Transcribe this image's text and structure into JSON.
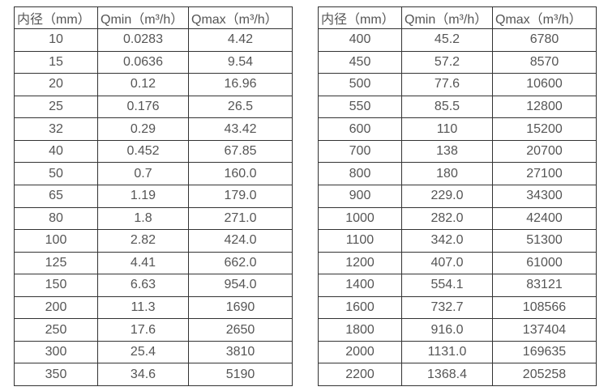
{
  "colors": {
    "border": "#333333",
    "text": "#555555",
    "background": "#ffffff"
  },
  "table_left": {
    "headers": [
      "内径（mm）",
      "Qmin（m³/h）",
      "Qmax（m³/h）"
    ],
    "rows": [
      [
        "10",
        "0.0283",
        "4.42"
      ],
      [
        "15",
        "0.0636",
        "9.54"
      ],
      [
        "20",
        "0.12",
        "16.96"
      ],
      [
        "25",
        "0.176",
        "26.5"
      ],
      [
        "32",
        "0.29",
        "43.42"
      ],
      [
        "40",
        "0.452",
        "67.85"
      ],
      [
        "50",
        "0.7",
        "160.0"
      ],
      [
        "65",
        "1.19",
        "179.0"
      ],
      [
        "80",
        "1.8",
        "271.0"
      ],
      [
        "100",
        "2.82",
        "424.0"
      ],
      [
        "125",
        "4.41",
        "662.0"
      ],
      [
        "150",
        "6.63",
        "954.0"
      ],
      [
        "200",
        "11.3",
        "1690"
      ],
      [
        "250",
        "17.6",
        "2650"
      ],
      [
        "300",
        "25.4",
        "3810"
      ],
      [
        "350",
        "34.6",
        "5190"
      ]
    ]
  },
  "table_right": {
    "headers": [
      "内径（mm）",
      "Qmin（m³/h）",
      "Qmax（m³/h）"
    ],
    "rows": [
      [
        "400",
        "45.2",
        "6780"
      ],
      [
        "450",
        "57.2",
        "8570"
      ],
      [
        "500",
        "77.6",
        "10600"
      ],
      [
        "550",
        "85.5",
        "12800"
      ],
      [
        "600",
        "110",
        "15200"
      ],
      [
        "700",
        "138",
        "20700"
      ],
      [
        "800",
        "180",
        "27100"
      ],
      [
        "900",
        "229.0",
        "34300"
      ],
      [
        "1000",
        "282.0",
        "42400"
      ],
      [
        "1100",
        "342.0",
        "51300"
      ],
      [
        "1200",
        "407.0",
        "61000"
      ],
      [
        "1400",
        "554.1",
        "83121"
      ],
      [
        "1600",
        "732.7",
        "108566"
      ],
      [
        "1800",
        "916.0",
        "137404"
      ],
      [
        "2000",
        "1131.0",
        "169635"
      ],
      [
        "2200",
        "1368.4",
        "205258"
      ]
    ]
  }
}
